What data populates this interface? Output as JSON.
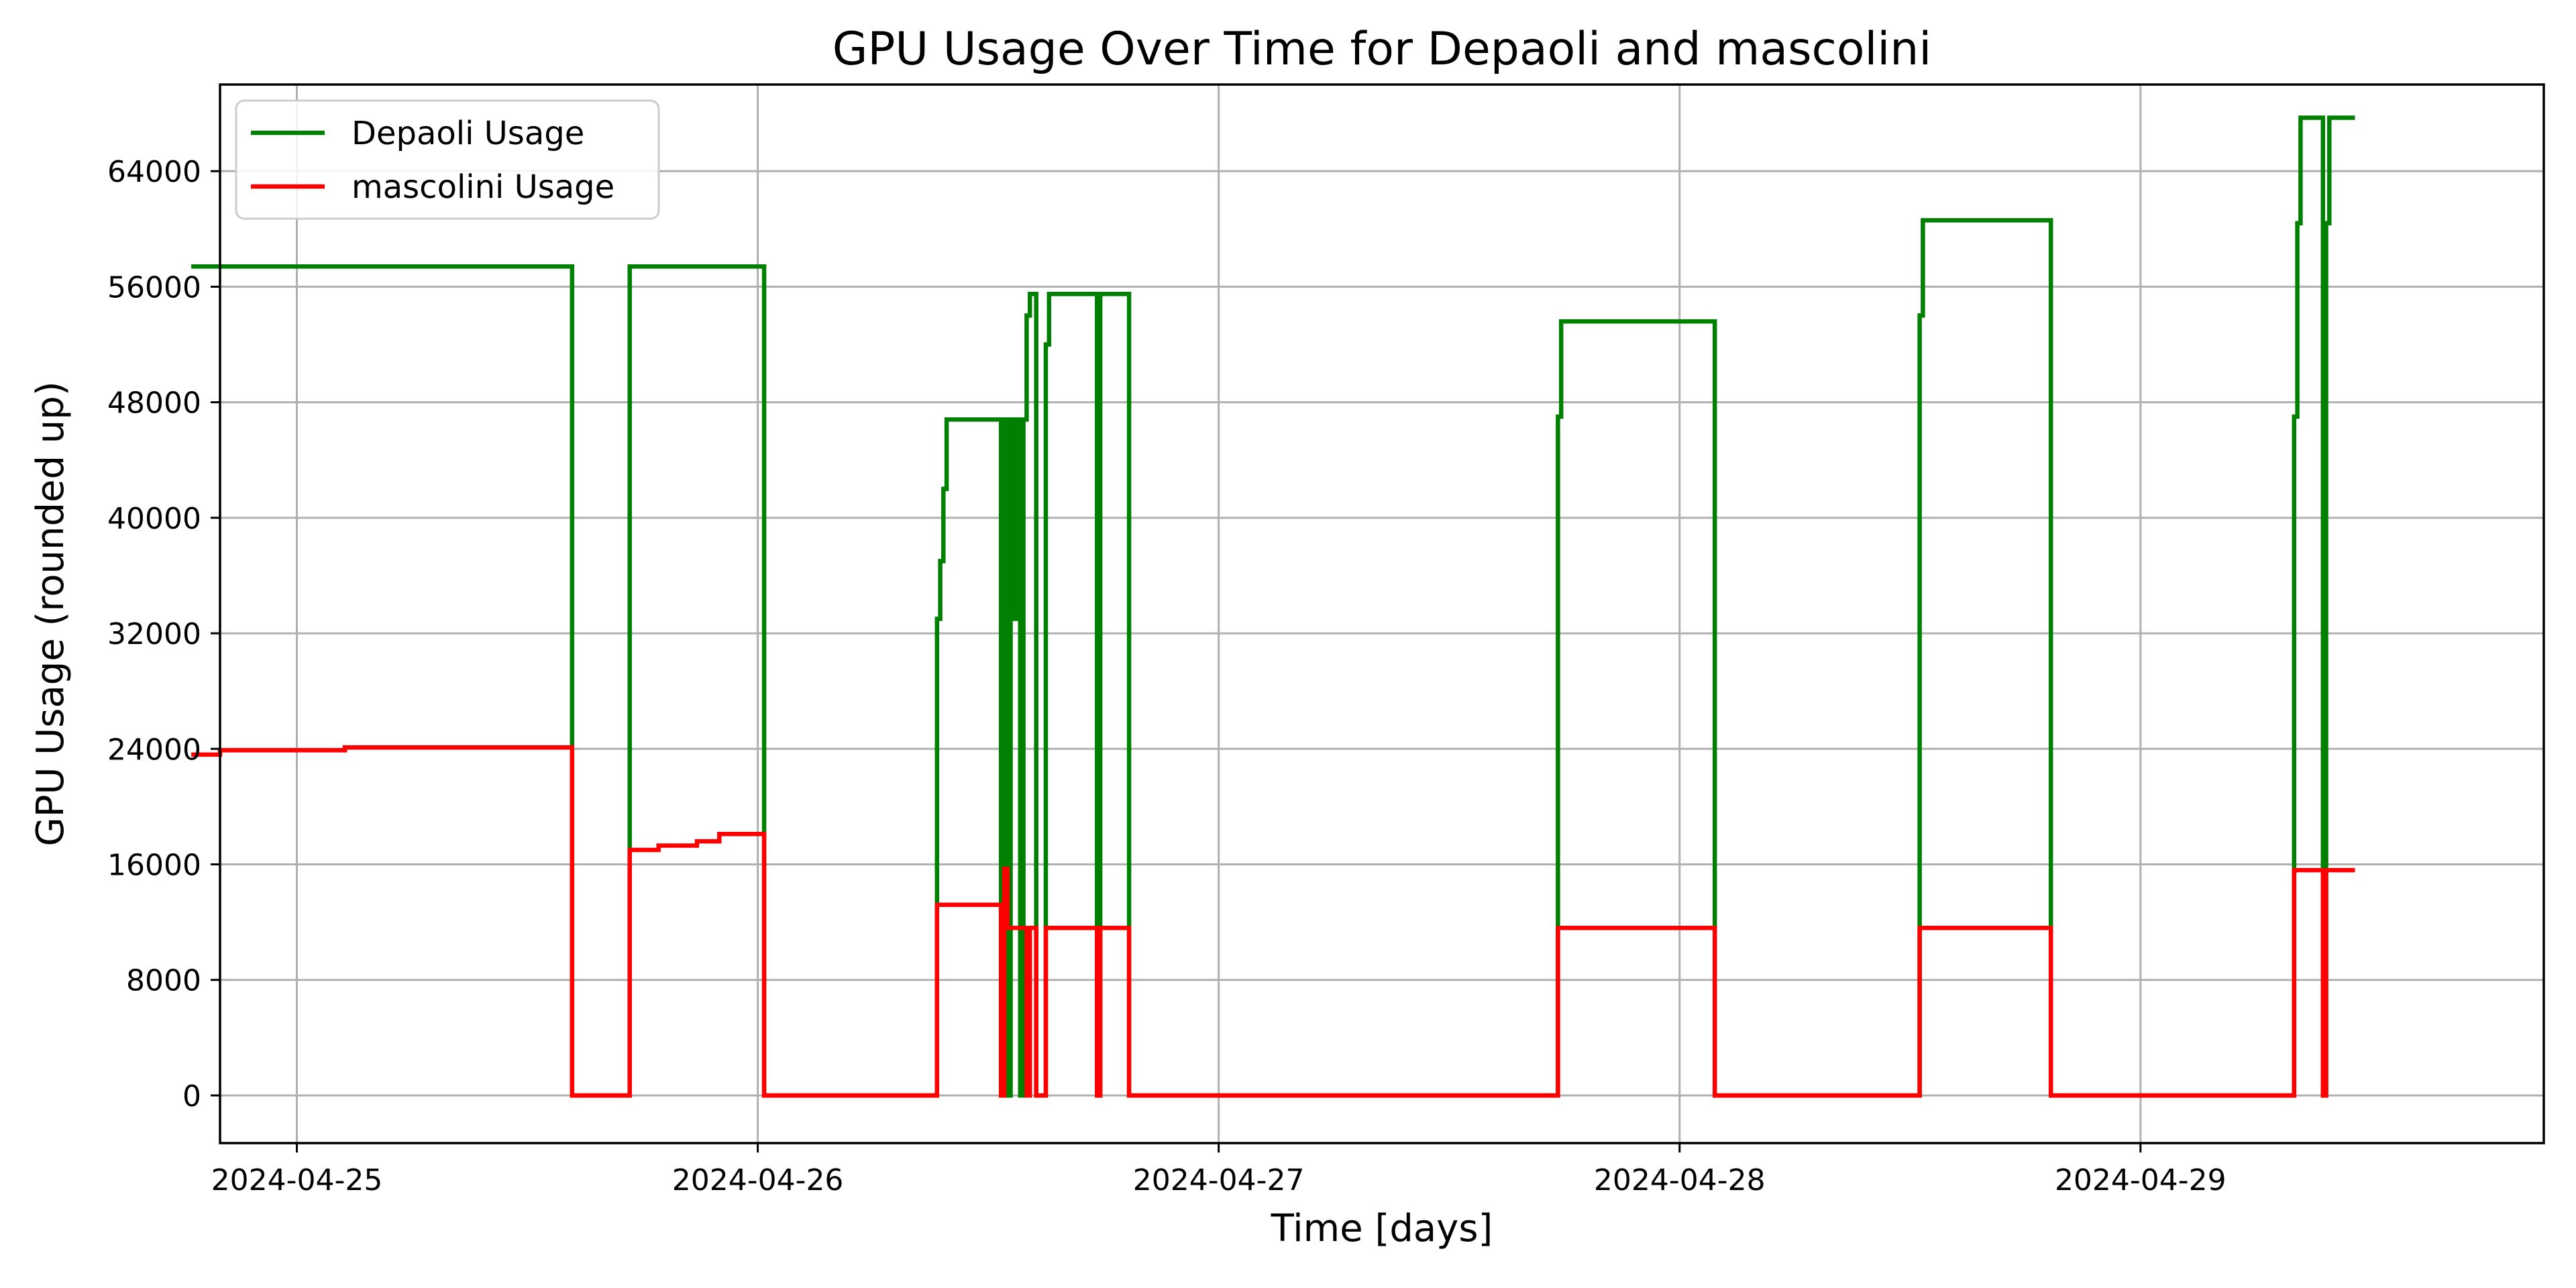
{
  "chart_data": {
    "type": "line",
    "title": "GPU Usage Over Time for Depaoli and mascolini",
    "xlabel": "Time [days]",
    "ylabel": "GPU Usage (rounded up)",
    "x_type": "datetime",
    "xlim": [
      "2024-04-24T20:00",
      "2024-04-29T21:00"
    ],
    "ylim": [
      -3300,
      70000
    ],
    "x_ticks": [
      "2024-04-25",
      "2024-04-26",
      "2024-04-27",
      "2024-04-28",
      "2024-04-29"
    ],
    "y_ticks": [
      0,
      8000,
      16000,
      24000,
      32000,
      40000,
      48000,
      56000,
      64000
    ],
    "y_tick_labels": [
      "0",
      "8000",
      "16000",
      "24000",
      "32000",
      "40000",
      "48000",
      "56000",
      "64000"
    ],
    "grid": true,
    "legend": "top-left",
    "step": "post",
    "series": [
      {
        "name": "Depaoli Usage",
        "color": "#008000",
        "points": [
          [
            "2024-04-24T18:30",
            57400
          ],
          [
            "2024-04-25T14:20",
            0
          ],
          [
            "2024-04-25T17:20",
            57400
          ],
          [
            "2024-04-26T00:20",
            0
          ],
          [
            "2024-04-26T09:20",
            33000
          ],
          [
            "2024-04-26T09:30",
            37000
          ],
          [
            "2024-04-26T09:40",
            42000
          ],
          [
            "2024-04-26T09:50",
            46800
          ],
          [
            "2024-04-26T12:40",
            0
          ],
          [
            "2024-04-26T12:50",
            46800
          ],
          [
            "2024-04-26T13:00",
            0
          ],
          [
            "2024-04-26T13:10",
            46800
          ],
          [
            "2024-04-26T13:20",
            33000
          ],
          [
            "2024-04-26T13:30",
            46800
          ],
          [
            "2024-04-26T13:40",
            0
          ],
          [
            "2024-04-26T13:50",
            46800
          ],
          [
            "2024-04-26T14:00",
            54000
          ],
          [
            "2024-04-26T14:10",
            55500
          ],
          [
            "2024-04-26T14:30",
            0
          ],
          [
            "2024-04-26T15:00",
            52000
          ],
          [
            "2024-04-26T15:10",
            55500
          ],
          [
            "2024-04-26T17:40",
            0
          ],
          [
            "2024-04-26T17:50",
            55500
          ],
          [
            "2024-04-26T19:20",
            0
          ],
          [
            "2024-04-27T17:40",
            47000
          ],
          [
            "2024-04-27T17:50",
            53600
          ],
          [
            "2024-04-28T01:50",
            0
          ],
          [
            "2024-04-28T12:30",
            54000
          ],
          [
            "2024-04-28T12:40",
            60600
          ],
          [
            "2024-04-28T19:20",
            0
          ],
          [
            "2024-04-29T08:00",
            47000
          ],
          [
            "2024-04-29T08:10",
            60400
          ],
          [
            "2024-04-29T08:20",
            67700
          ],
          [
            "2024-04-29T09:30",
            0
          ],
          [
            "2024-04-29T09:40",
            60400
          ],
          [
            "2024-04-29T09:50",
            67700
          ],
          [
            "2024-04-29T11:10",
            67700
          ]
        ]
      },
      {
        "name": "mascolini Usage",
        "color": "#ff0000",
        "points": [
          [
            "2024-04-24T18:30",
            23600
          ],
          [
            "2024-04-24T20:00",
            23900
          ],
          [
            "2024-04-25T02:30",
            24100
          ],
          [
            "2024-04-25T14:20",
            0
          ],
          [
            "2024-04-25T17:20",
            17000
          ],
          [
            "2024-04-25T18:50",
            17300
          ],
          [
            "2024-04-25T20:50",
            17600
          ],
          [
            "2024-04-25T22:00",
            18100
          ],
          [
            "2024-04-26T00:20",
            0
          ],
          [
            "2024-04-26T09:20",
            13200
          ],
          [
            "2024-04-26T12:40",
            0
          ],
          [
            "2024-04-26T12:50",
            15700
          ],
          [
            "2024-04-26T13:00",
            11600
          ],
          [
            "2024-04-26T14:00",
            0
          ],
          [
            "2024-04-26T14:10",
            11600
          ],
          [
            "2024-04-26T14:30",
            0
          ],
          [
            "2024-04-26T15:00",
            11600
          ],
          [
            "2024-04-26T17:40",
            0
          ],
          [
            "2024-04-26T17:50",
            11600
          ],
          [
            "2024-04-26T19:20",
            0
          ],
          [
            "2024-04-27T17:40",
            11600
          ],
          [
            "2024-04-28T01:50",
            0
          ],
          [
            "2024-04-28T12:30",
            11600
          ],
          [
            "2024-04-28T19:20",
            0
          ],
          [
            "2024-04-29T08:00",
            15600
          ],
          [
            "2024-04-29T09:30",
            0
          ],
          [
            "2024-04-29T09:40",
            15600
          ],
          [
            "2024-04-29T11:10",
            15600
          ]
        ]
      }
    ]
  }
}
